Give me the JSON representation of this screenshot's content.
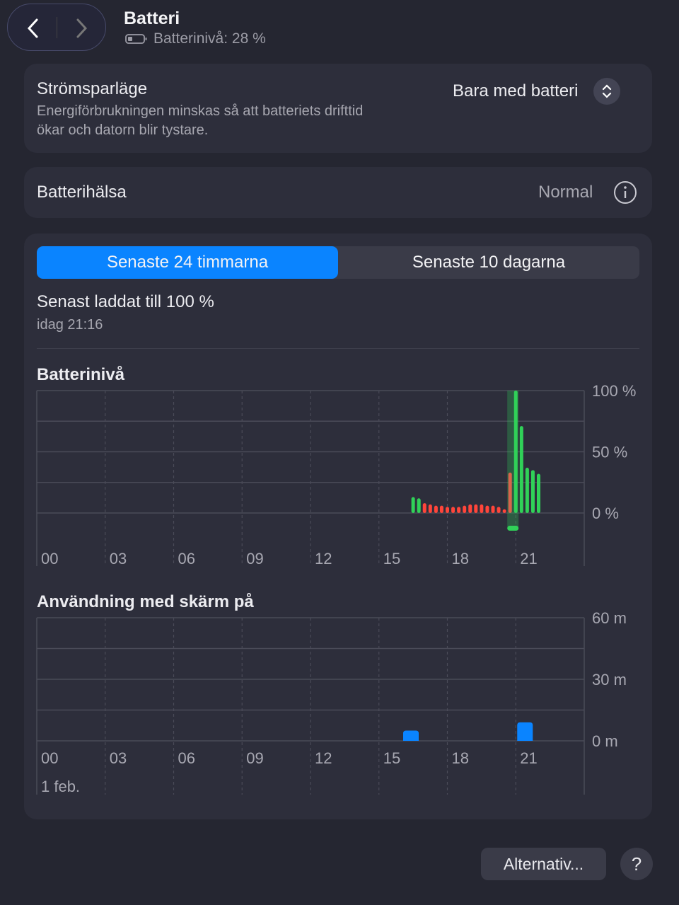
{
  "header": {
    "title": "Batteri",
    "subtitle": "Batterinivå: 28 %"
  },
  "low_power": {
    "label": "Strömsparläge",
    "description_line1": "Energiförbrukningen minskas så att batteriets drifttid",
    "description_line2": "ökar och datorn blir tystare.",
    "value": "Bara med batteri"
  },
  "health": {
    "label": "Batterihälsa",
    "value": "Normal"
  },
  "tabs": [
    {
      "label": "Senaste 24 timmarna",
      "selected": true
    },
    {
      "label": "Senaste 10 dagarna",
      "selected": false
    }
  ],
  "last_charged": {
    "label": "Senast laddat till 100 %",
    "time": "idag 21:16"
  },
  "colors": {
    "accent": "#0a84ff",
    "charging": "#30d158",
    "discharging": "#ff453a"
  },
  "chart_data": [
    {
      "type": "bar",
      "title": "Batterinivå",
      "ylim": [
        0,
        100
      ],
      "yticks": [
        "100 %",
        "50 %",
        "0 %"
      ],
      "xticks": [
        "00",
        "03",
        "06",
        "09",
        "12",
        "15",
        "18",
        "21"
      ],
      "grid": true,
      "x": [
        "16:30",
        "16:45",
        "17:00",
        "17:15",
        "17:30",
        "17:45",
        "18:00",
        "18:15",
        "18:30",
        "18:45",
        "19:00",
        "19:15",
        "19:30",
        "19:45",
        "20:00",
        "20:15",
        "20:30",
        "20:45",
        "21:00",
        "21:15",
        "21:30",
        "21:45",
        "22:00"
      ],
      "values": [
        13,
        12,
        8,
        7,
        6,
        6,
        5,
        5,
        5,
        6,
        7,
        7,
        7,
        6,
        6,
        5,
        3,
        33,
        100,
        71,
        37,
        35,
        32
      ],
      "status": [
        "charging",
        "charging",
        "discharging",
        "discharging",
        "discharging",
        "discharging",
        "discharging",
        "discharging",
        "discharging",
        "discharging",
        "discharging",
        "discharging",
        "discharging",
        "discharging",
        "discharging",
        "discharging",
        "discharging",
        "transition",
        "charging",
        "charging",
        "charging",
        "charging",
        "charging"
      ]
    },
    {
      "type": "bar",
      "title": "Användning med skärm på",
      "ylim": [
        0,
        60
      ],
      "yticks": [
        "60 m",
        "30 m",
        "0 m"
      ],
      "xticks": [
        "00",
        "03",
        "06",
        "09",
        "12",
        "15",
        "18",
        "21"
      ],
      "date_label": "1 feb.",
      "grid": true,
      "x": [
        "16",
        "21"
      ],
      "values": [
        5,
        9
      ]
    }
  ],
  "footer": {
    "options_button": "Alternativ...",
    "help_button": "?"
  }
}
